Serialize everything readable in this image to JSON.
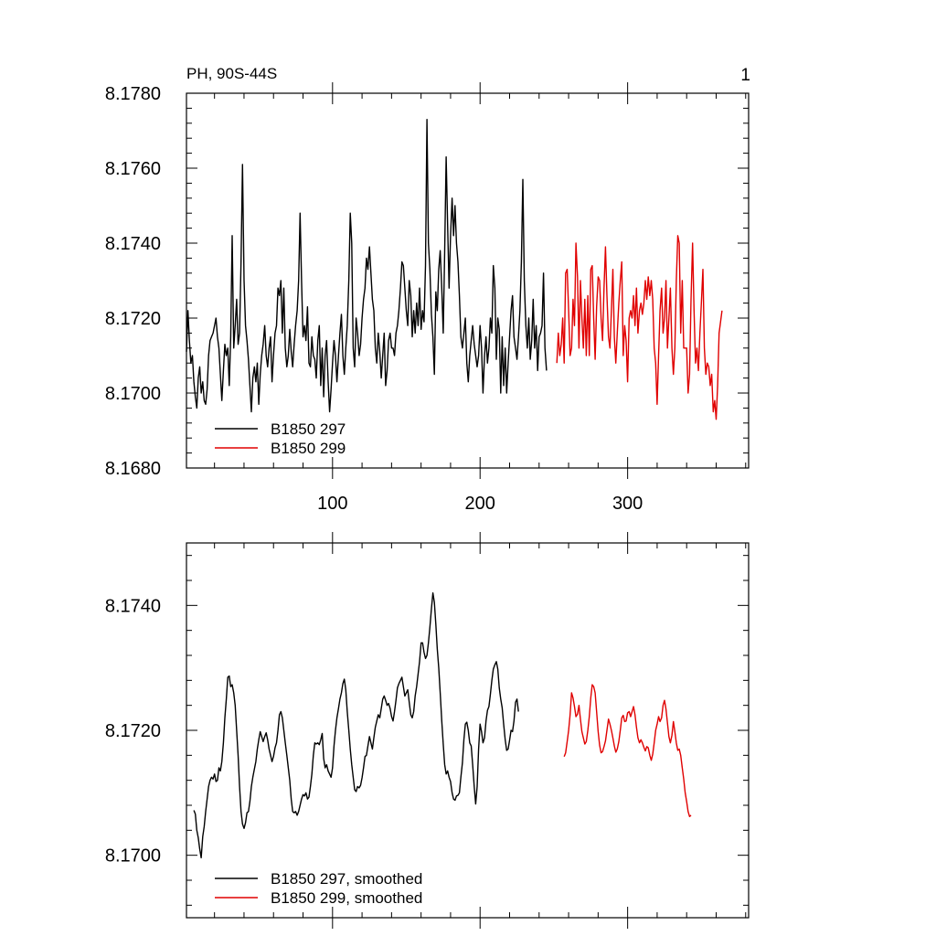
{
  "chart_data": [
    {
      "type": "line",
      "title": "PH, 90S-44S",
      "panel_label": "1",
      "xlim": [
        1,
        382
      ],
      "ylim": [
        8.168,
        8.178
      ],
      "x_ticks": [
        100,
        200,
        300
      ],
      "x_tick_labels": [
        "100",
        "200",
        "300"
      ],
      "y_ticks": [
        8.168,
        8.17,
        8.172,
        8.174,
        8.176,
        8.178
      ],
      "y_tick_labels": [
        "8.1680",
        "8.1700",
        "8.1720",
        "8.1740",
        "8.1760",
        "8.1780"
      ],
      "legend": "bottom-left",
      "series": [
        {
          "name": "B1850 297",
          "color": "#000000",
          "x_start": 1,
          "values": [
            8.1711,
            8.1722,
            8.1714,
            8.1708,
            8.171,
            8.1703,
            8.1699,
            8.1696,
            8.1704,
            8.1707,
            8.17,
            8.1703,
            8.1698,
            8.1697,
            8.1701,
            8.171,
            8.1714,
            8.1715,
            8.1716,
            8.1718,
            8.172,
            8.1715,
            8.1712,
            8.1705,
            8.1698,
            8.1706,
            8.1713,
            8.171,
            8.1712,
            8.1702,
            8.1715,
            8.1742,
            8.1712,
            8.1718,
            8.1725,
            8.1713,
            8.1716,
            8.1735,
            8.1761,
            8.173,
            8.1718,
            8.1714,
            8.1709,
            8.1702,
            8.1695,
            8.1704,
            8.1707,
            8.1703,
            8.1708,
            8.1697,
            8.1705,
            8.171,
            8.1713,
            8.1718,
            8.171,
            8.1707,
            8.1712,
            8.1715,
            8.1703,
            8.171,
            8.1716,
            8.1718,
            8.1728,
            8.1726,
            8.173,
            8.1716,
            8.1728,
            8.1712,
            8.1707,
            8.171,
            8.1717,
            8.1711,
            8.1707,
            8.1713,
            8.1718,
            8.1722,
            8.173,
            8.1748,
            8.173,
            8.1715,
            8.1718,
            8.1714,
            8.1723,
            8.1708,
            8.1707,
            8.1715,
            8.171,
            8.1709,
            8.1704,
            8.1714,
            8.1718,
            8.1702,
            8.1712,
            8.1699,
            8.171,
            8.1714,
            8.1703,
            8.1695,
            8.1701,
            8.1708,
            8.1714,
            8.171,
            8.1703,
            8.171,
            8.1716,
            8.1721,
            8.171,
            8.1705,
            8.1712,
            8.1718,
            8.173,
            8.1748,
            8.174,
            8.1712,
            8.1707,
            8.172,
            8.1716,
            8.171,
            8.1713,
            8.172,
            8.1725,
            8.1728,
            8.1736,
            8.1733,
            8.1739,
            8.1732,
            8.1725,
            8.1722,
            8.1712,
            8.1708,
            8.1716,
            8.1711,
            8.1704,
            8.171,
            8.1716,
            8.1702,
            8.1706,
            8.1714,
            8.1716,
            8.1712,
            8.1712,
            8.171,
            8.1716,
            8.1718,
            8.1722,
            8.1728,
            8.1735,
            8.1734,
            8.1728,
            8.1722,
            8.1718,
            8.173,
            8.1726,
            8.1715,
            8.1722,
            8.1716,
            8.1724,
            8.1718,
            8.1728,
            8.1717,
            8.1722,
            8.1719,
            8.1734,
            8.1773,
            8.174,
            8.1733,
            8.1721,
            8.1715,
            8.1705,
            8.1727,
            8.1722,
            8.1733,
            8.1738,
            8.1728,
            8.1716,
            8.1738,
            8.1763,
            8.1745,
            8.1728,
            8.1742,
            8.1752,
            8.1742,
            8.175,
            8.174,
            8.1735,
            8.1726,
            8.1715,
            8.1712,
            8.1716,
            8.172,
            8.1708,
            8.1703,
            8.171,
            8.1714,
            8.1718,
            8.1713,
            8.171,
            8.1707,
            8.171,
            8.1718,
            8.1712,
            8.17,
            8.171,
            8.1715,
            8.1708,
            8.1712,
            8.172,
            8.1716,
            8.1734,
            8.1728,
            8.1709,
            8.172,
            8.1717,
            8.17,
            8.1715,
            8.1702,
            8.1712,
            8.17,
            8.1708,
            8.1715,
            8.1722,
            8.1726,
            8.1715,
            8.1712,
            8.1709,
            8.1715,
            8.1722,
            8.1735,
            8.1757,
            8.173,
            8.1718,
            8.1712,
            8.172,
            8.1709,
            8.1714,
            8.1725,
            8.1712,
            8.1718,
            8.1706,
            8.1715,
            8.1716,
            8.1718,
            8.1732,
            8.1712,
            8.1706
          ]
        },
        {
          "name": "B1850 299",
          "color": "#e00000",
          "x_start": 252,
          "values": [
            8.1708,
            8.1716,
            8.171,
            8.1713,
            8.172,
            8.1708,
            8.1732,
            8.1733,
            8.1722,
            8.171,
            8.1712,
            8.1725,
            8.1718,
            8.174,
            8.1731,
            8.1712,
            8.173,
            8.172,
            8.1712,
            8.1725,
            8.171,
            8.1726,
            8.171,
            8.1733,
            8.1734,
            8.172,
            8.1709,
            8.1723,
            8.1731,
            8.173,
            8.172,
            8.1714,
            8.1728,
            8.1739,
            8.1726,
            8.1715,
            8.1712,
            8.1722,
            8.1733,
            8.1715,
            8.1708,
            8.1716,
            8.1724,
            8.173,
            8.1735,
            8.171,
            8.1718,
            8.1714,
            8.1703,
            8.172,
            8.1722,
            8.172,
            8.1726,
            8.1718,
            8.1728,
            8.1716,
            8.1722,
            8.1724,
            8.1721,
            8.1724,
            8.173,
            8.1725,
            8.1731,
            8.1726,
            8.173,
            8.1725,
            8.1712,
            8.1708,
            8.1697,
            8.171,
            8.1722,
            8.1728,
            8.1716,
            8.172,
            8.173,
            8.1712,
            8.172,
            8.1728,
            8.1712,
            8.1705,
            8.1712,
            8.173,
            8.1742,
            8.174,
            8.1716,
            8.173,
            8.1712,
            8.1712,
            8.1712,
            8.17,
            8.1705,
            8.1725,
            8.174,
            8.1722,
            8.1708,
            8.1712,
            8.1706,
            8.1716,
            8.1724,
            8.1733,
            8.1712,
            8.1705,
            8.1708,
            8.1707,
            8.1702,
            8.1705,
            8.1695,
            8.1698,
            8.1693,
            8.1702,
            8.1716,
            8.1719,
            8.1722
          ]
        }
      ]
    },
    {
      "type": "line",
      "xlim": [
        1,
        382
      ],
      "ylim": [
        8.169,
        8.175
      ],
      "x_ticks": [
        100,
        200,
        300
      ],
      "y_ticks": [
        8.17,
        8.172,
        8.174
      ],
      "y_tick_labels": [
        "8.1700",
        "8.1720",
        "8.1740"
      ],
      "legend": "bottom-left",
      "series": [
        {
          "name": "B1850 297, smoothed",
          "color": "#000000",
          "x_start": 6,
          "values": [
            8.17072,
            8.17066,
            8.1704,
            8.17028,
            8.1701,
            8.16996,
            8.1703,
            8.17046,
            8.1707,
            8.1709,
            8.1711,
            8.1712,
            8.17125,
            8.17122,
            8.1713,
            8.17118,
            8.1712,
            8.1714,
            8.17135,
            8.1715,
            8.1718,
            8.1722,
            8.1725,
            8.17285,
            8.17287,
            8.1727,
            8.17273,
            8.1726,
            8.1724,
            8.172,
            8.1716,
            8.1711,
            8.1707,
            8.1705,
            8.17043,
            8.17052,
            8.17068,
            8.1707,
            8.17086,
            8.1711,
            8.17125,
            8.17138,
            8.1715,
            8.1717,
            8.17185,
            8.17198,
            8.1719,
            8.17182,
            8.1719,
            8.17196,
            8.17185,
            8.1717,
            8.1716,
            8.1715,
            8.17158,
            8.17172,
            8.1718,
            8.172,
            8.17225,
            8.1723,
            8.1722,
            8.172,
            8.1718,
            8.1716,
            8.1714,
            8.1712,
            8.1709,
            8.1707,
            8.17068,
            8.1707,
            8.17064,
            8.1707,
            8.1708,
            8.1709,
            8.17097,
            8.17095,
            8.171,
            8.1709,
            8.17093,
            8.1711,
            8.1713,
            8.1716,
            8.1718,
            8.17178,
            8.1718,
            8.17177,
            8.17185,
            8.17195,
            8.17155,
            8.1714,
            8.17145,
            8.17135,
            8.1713,
            8.17125,
            8.1714,
            8.17175,
            8.172,
            8.1722,
            8.17235,
            8.1725,
            8.1726,
            8.17275,
            8.17282,
            8.17265,
            8.1723,
            8.172,
            8.1717,
            8.17145,
            8.17125,
            8.17105,
            8.17102,
            8.1711,
            8.17108,
            8.17112,
            8.17124,
            8.1714,
            8.17158,
            8.1716,
            8.17175,
            8.1719,
            8.1718,
            8.1717,
            8.17188,
            8.17205,
            8.17215,
            8.17225,
            8.1722,
            8.17235,
            8.1725,
            8.17255,
            8.17248,
            8.1724,
            8.17243,
            8.17235,
            8.17222,
            8.17215,
            8.1723,
            8.17248,
            8.17268,
            8.17275,
            8.1728,
            8.17285,
            8.1727,
            8.17255,
            8.1726,
            8.17265,
            8.17245,
            8.17225,
            8.1722,
            8.1723,
            8.17255,
            8.1727,
            8.1729,
            8.1731,
            8.1734,
            8.1734,
            8.17325,
            8.17315,
            8.1732,
            8.1734,
            8.17365,
            8.17395,
            8.1742,
            8.17405,
            8.1737,
            8.1733,
            8.173,
            8.1726,
            8.17215,
            8.17178,
            8.17145,
            8.1713,
            8.17135,
            8.17125,
            8.17118,
            8.171,
            8.1709,
            8.17088,
            8.17095,
            8.17096,
            8.171,
            8.17125,
            8.17148,
            8.17185,
            8.1721,
            8.17213,
            8.172,
            8.1718,
            8.17175,
            8.17145,
            8.1711,
            8.17082,
            8.1711,
            8.1717,
            8.1721,
            8.17198,
            8.1718,
            8.17188,
            8.17215,
            8.17232,
            8.17238,
            8.17258,
            8.1728,
            8.17298,
            8.17305,
            8.1731,
            8.17298,
            8.17268,
            8.1725,
            8.17236,
            8.1721,
            8.17185,
            8.17168,
            8.1717,
            8.17184,
            8.172,
            8.17198,
            8.17215,
            8.17245,
            8.1725,
            8.1723
          ]
        },
        {
          "name": "B1850 299, smoothed",
          "color": "#e00000",
          "x_start": 257,
          "values": [
            8.17158,
            8.17164,
            8.17182,
            8.172,
            8.17225,
            8.1726,
            8.17252,
            8.17238,
            8.17222,
            8.17226,
            8.1724,
            8.17218,
            8.17198,
            8.17188,
            8.17178,
            8.17182,
            8.172,
            8.17222,
            8.17252,
            8.17273,
            8.1727,
            8.1726,
            8.1723,
            8.17198,
            8.17176,
            8.17164,
            8.17166,
            8.17174,
            8.17183,
            8.172,
            8.17218,
            8.1721,
            8.172,
            8.17188,
            8.17175,
            8.17165,
            8.1717,
            8.17182,
            8.172,
            8.1722,
            8.17224,
            8.17214,
            8.17215,
            8.17228,
            8.1723,
            8.17222,
            8.1723,
            8.17238,
            8.17225,
            8.17205,
            8.17188,
            8.1718,
            8.17185,
            8.1718,
            8.17173,
            8.17167,
            8.17174,
            8.17172,
            8.1716,
            8.17152,
            8.17162,
            8.1718,
            8.172,
            8.1721,
            8.17222,
            8.17214,
            8.1722,
            8.1724,
            8.17248,
            8.17234,
            8.17212,
            8.1719,
            8.1718,
            8.17192,
            8.17214,
            8.17198,
            8.1718,
            8.17168,
            8.1717,
            8.1716,
            8.1714,
            8.17122,
            8.171,
            8.17086,
            8.1707,
            8.17062,
            8.17064
          ]
        }
      ]
    }
  ]
}
